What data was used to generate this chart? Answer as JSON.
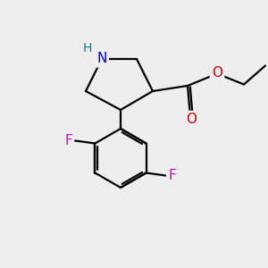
{
  "background_color": "#eeeeee",
  "bond_color": "#000000",
  "N_color": "#0000cc",
  "O_color": "#cc0000",
  "F_color": "#cc00cc",
  "H_color": "#008080",
  "line_width": 1.6,
  "figsize": [
    3.0,
    3.0
  ],
  "dpi": 100,
  "xlim": [
    0,
    10
  ],
  "ylim": [
    0,
    10
  ]
}
